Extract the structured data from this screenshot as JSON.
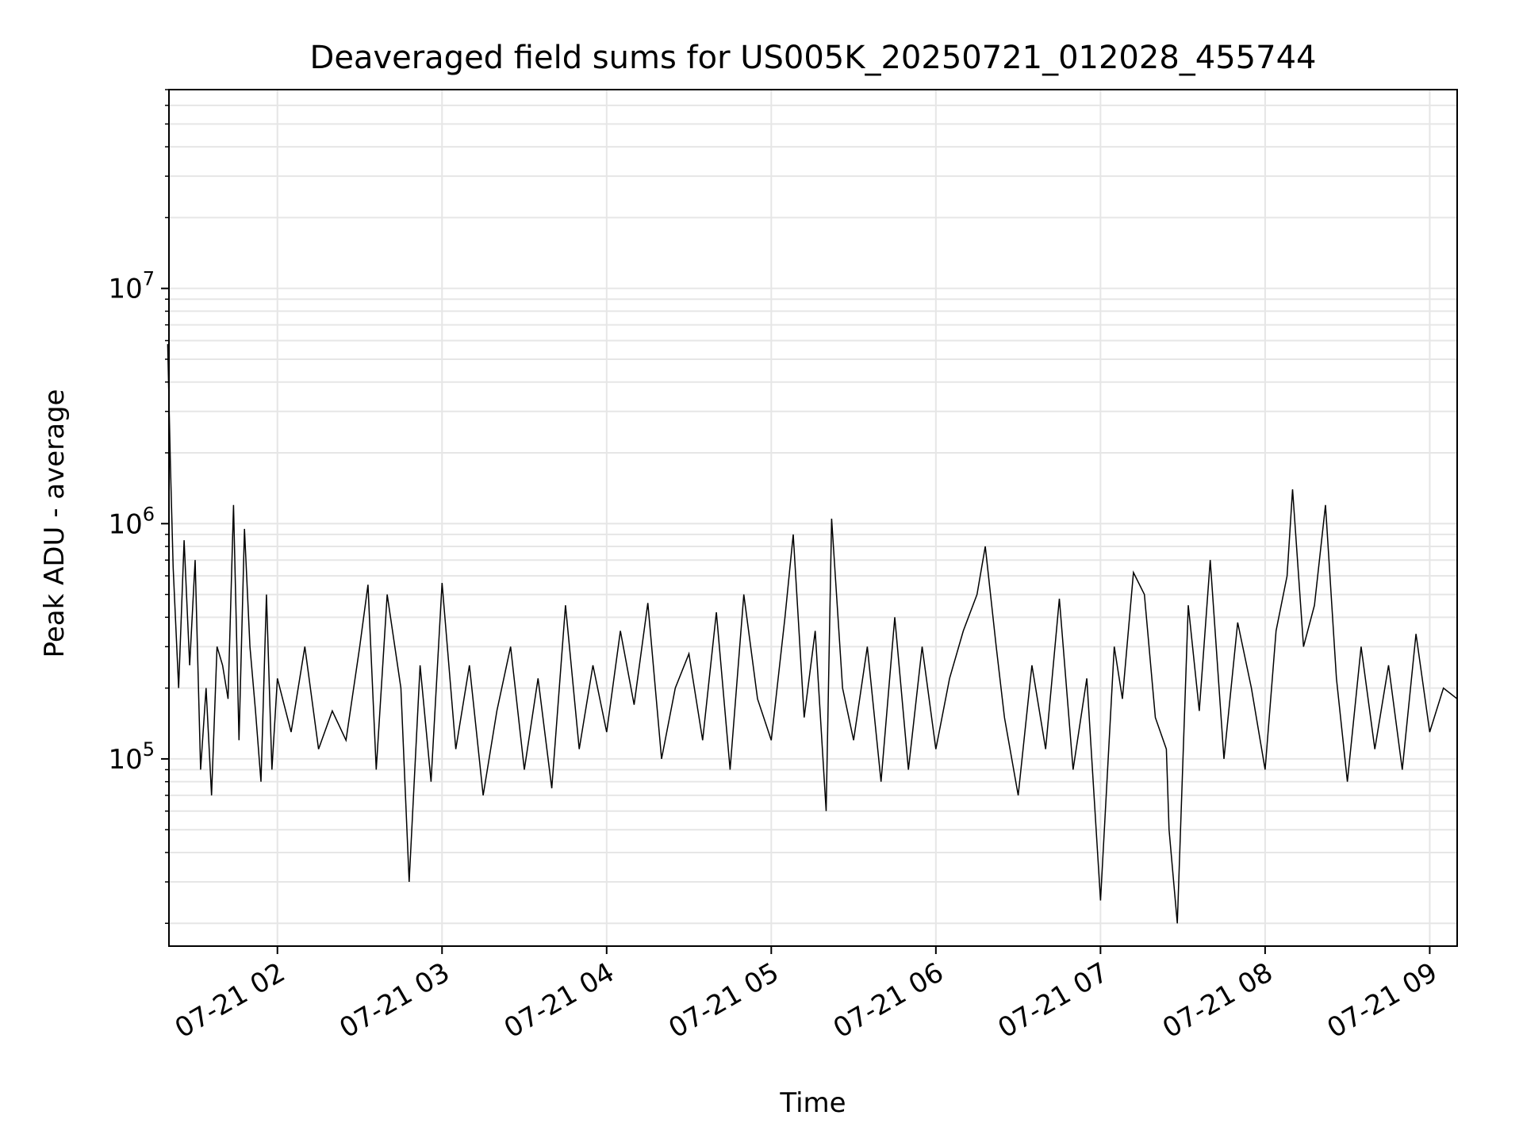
{
  "chart_data": {
    "type": "line",
    "title": "Deaveraged field sums for US005K_20250721_012028_455744",
    "xlabel": "Time",
    "ylabel": "Peak ADU - average",
    "yscale": "log",
    "ylim": [
      16000,
      70000000
    ],
    "xlim": [
      "2025-07-21 01:20:28",
      "2025-07-21 09:10:00"
    ],
    "grid": true,
    "line_color": "#000000",
    "grid_color": "#e6e6e6",
    "x_ticks": [
      {
        "value": "2025-07-21 02:00",
        "label": "07-21 02"
      },
      {
        "value": "2025-07-21 03:00",
        "label": "07-21 03"
      },
      {
        "value": "2025-07-21 04:00",
        "label": "07-21 04"
      },
      {
        "value": "2025-07-21 05:00",
        "label": "07-21 05"
      },
      {
        "value": "2025-07-21 06:00",
        "label": "07-21 06"
      },
      {
        "value": "2025-07-21 07:00",
        "label": "07-21 07"
      },
      {
        "value": "2025-07-21 08:00",
        "label": "07-21 08"
      },
      {
        "value": "2025-07-21 09:00",
        "label": "07-21 09"
      }
    ],
    "y_ticks": [
      {
        "value": 100000,
        "base": "10",
        "exp": "5"
      },
      {
        "value": 1000000,
        "base": "10",
        "exp": "6"
      },
      {
        "value": 10000000,
        "base": "10",
        "exp": "7"
      }
    ],
    "series": [
      {
        "x": [
          "2025-07-21 01:20",
          "2025-07-21 01:21",
          "2025-07-21 01:22",
          "2025-07-21 01:24",
          "2025-07-21 01:26",
          "2025-07-21 01:28",
          "2025-07-21 01:30",
          "2025-07-21 01:32",
          "2025-07-21 01:34",
          "2025-07-21 01:36",
          "2025-07-21 01:38",
          "2025-07-21 01:40",
          "2025-07-21 01:42",
          "2025-07-21 01:44",
          "2025-07-21 01:46",
          "2025-07-21 01:48",
          "2025-07-21 01:50",
          "2025-07-21 01:52",
          "2025-07-21 01:54",
          "2025-07-21 01:56",
          "2025-07-21 01:58",
          "2025-07-21 02:00",
          "2025-07-21 02:05",
          "2025-07-21 02:10",
          "2025-07-21 02:15",
          "2025-07-21 02:20",
          "2025-07-21 02:25",
          "2025-07-21 02:30",
          "2025-07-21 02:33",
          "2025-07-21 02:36",
          "2025-07-21 02:40",
          "2025-07-21 02:45",
          "2025-07-21 02:48",
          "2025-07-21 02:52",
          "2025-07-21 02:56",
          "2025-07-21 03:00",
          "2025-07-21 03:05",
          "2025-07-21 03:10",
          "2025-07-21 03:15",
          "2025-07-21 03:20",
          "2025-07-21 03:25",
          "2025-07-21 03:30",
          "2025-07-21 03:35",
          "2025-07-21 03:40",
          "2025-07-21 03:45",
          "2025-07-21 03:50",
          "2025-07-21 03:55",
          "2025-07-21 04:00",
          "2025-07-21 04:05",
          "2025-07-21 04:10",
          "2025-07-21 04:15",
          "2025-07-21 04:20",
          "2025-07-21 04:25",
          "2025-07-21 04:30",
          "2025-07-21 04:35",
          "2025-07-21 04:40",
          "2025-07-21 04:45",
          "2025-07-21 04:50",
          "2025-07-21 04:55",
          "2025-07-21 05:00",
          "2025-07-21 05:05",
          "2025-07-21 05:08",
          "2025-07-21 05:12",
          "2025-07-21 05:16",
          "2025-07-21 05:20",
          "2025-07-21 05:22",
          "2025-07-21 05:26",
          "2025-07-21 05:30",
          "2025-07-21 05:35",
          "2025-07-21 05:40",
          "2025-07-21 05:45",
          "2025-07-21 05:50",
          "2025-07-21 05:55",
          "2025-07-21 06:00",
          "2025-07-21 06:05",
          "2025-07-21 06:10",
          "2025-07-21 06:15",
          "2025-07-21 06:18",
          "2025-07-21 06:22",
          "2025-07-21 06:25",
          "2025-07-21 06:30",
          "2025-07-21 06:35",
          "2025-07-21 06:40",
          "2025-07-21 06:45",
          "2025-07-21 06:50",
          "2025-07-21 06:55",
          "2025-07-21 07:00",
          "2025-07-21 07:05",
          "2025-07-21 07:08",
          "2025-07-21 07:12",
          "2025-07-21 07:16",
          "2025-07-21 07:20",
          "2025-07-21 07:24",
          "2025-07-21 07:25",
          "2025-07-21 07:28",
          "2025-07-21 07:32",
          "2025-07-21 07:36",
          "2025-07-21 07:40",
          "2025-07-21 07:45",
          "2025-07-21 07:50",
          "2025-07-21 07:55",
          "2025-07-21 08:00",
          "2025-07-21 08:04",
          "2025-07-21 08:08",
          "2025-07-21 08:10",
          "2025-07-21 08:14",
          "2025-07-21 08:18",
          "2025-07-21 08:22",
          "2025-07-21 08:26",
          "2025-07-21 08:30",
          "2025-07-21 08:35",
          "2025-07-21 08:40",
          "2025-07-21 08:45",
          "2025-07-21 08:50",
          "2025-07-21 08:55",
          "2025-07-21 09:00",
          "2025-07-21 09:05",
          "2025-07-21 09:10"
        ],
        "values": [
          5800000,
          1800000,
          650000,
          200000,
          850000,
          250000,
          700000,
          90000,
          200000,
          70000,
          300000,
          250000,
          180000,
          1200000,
          120000,
          950000,
          300000,
          160000,
          80000,
          500000,
          90000,
          220000,
          130000,
          300000,
          110000,
          160000,
          120000,
          300000,
          550000,
          90000,
          500000,
          200000,
          30000,
          250000,
          80000,
          560000,
          110000,
          250000,
          70000,
          160000,
          300000,
          90000,
          220000,
          75000,
          450000,
          110000,
          250000,
          130000,
          350000,
          170000,
          460000,
          100000,
          200000,
          280000,
          120000,
          420000,
          90000,
          500000,
          180000,
          120000,
          400000,
          900000,
          150000,
          350000,
          60000,
          1050000,
          200000,
          120000,
          300000,
          80000,
          400000,
          90000,
          300000,
          110000,
          220000,
          350000,
          500000,
          800000,
          300000,
          150000,
          70000,
          250000,
          110000,
          480000,
          90000,
          220000,
          25000,
          300000,
          180000,
          620000,
          500000,
          150000,
          110000,
          50000,
          20000,
          450000,
          160000,
          700000,
          100000,
          380000,
          200000,
          90000,
          350000,
          600000,
          1400000,
          300000,
          450000,
          1200000,
          220000,
          80000,
          300000,
          110000,
          250000,
          90000,
          340000,
          130000,
          200000,
          180000
        ]
      }
    ]
  }
}
